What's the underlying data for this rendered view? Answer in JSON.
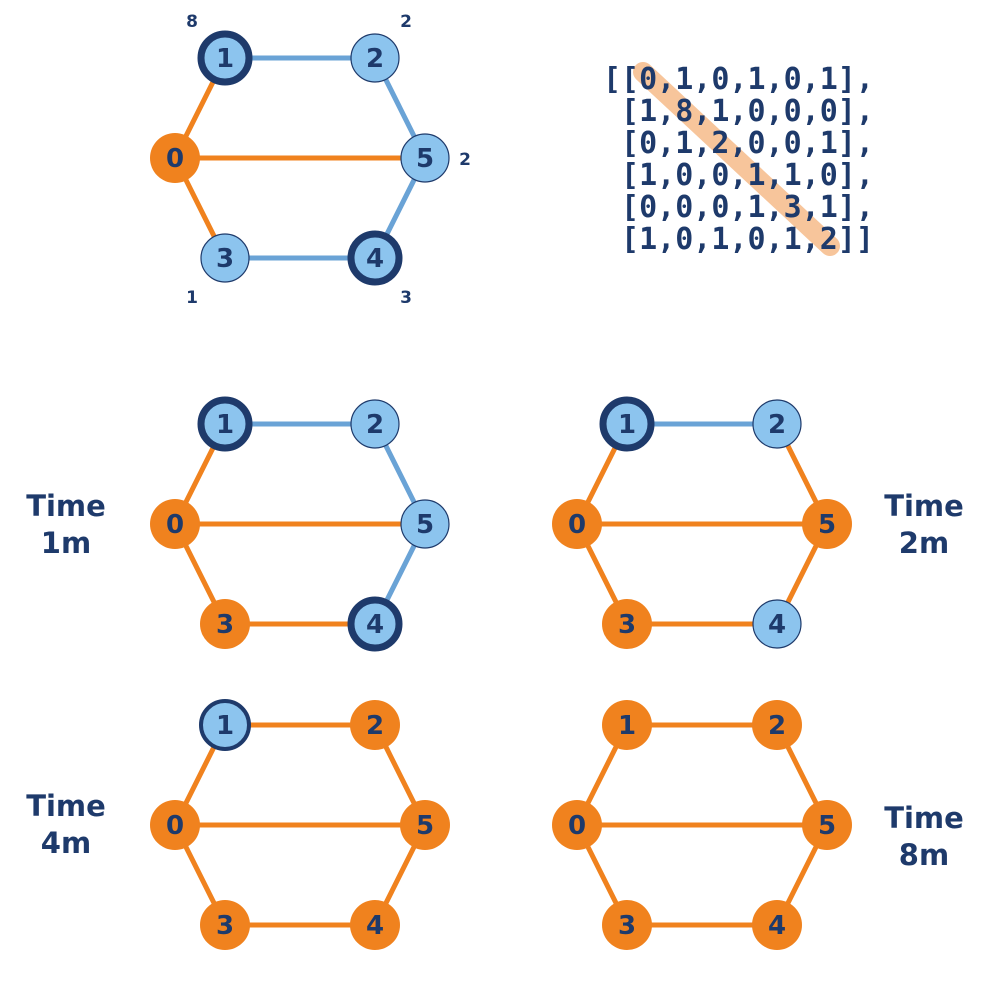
{
  "colors": {
    "orange": "#f0821e",
    "light_blue": "#8cc4ee",
    "edge_blue": "#6aa3d6",
    "dark_navy": "#1e3a6b",
    "diagonal_highlight": "#f7c59b"
  },
  "nodes": [
    "0",
    "1",
    "2",
    "3",
    "4",
    "5"
  ],
  "edges": [
    [
      "0",
      "1"
    ],
    [
      "1",
      "2"
    ],
    [
      "2",
      "5"
    ],
    [
      "0",
      "5"
    ],
    [
      "0",
      "3"
    ],
    [
      "3",
      "4"
    ],
    [
      "4",
      "5"
    ]
  ],
  "weights": {
    "1": "8",
    "2": "2",
    "5": "2",
    "3": "1",
    "4": "3"
  },
  "matrix": {
    "lines": [
      "[[0,1,0,1,0,1],",
      " [1,8,1,0,0,0],",
      " [0,1,2,0,0,1],",
      " [1,0,0,1,1,0],",
      " [0,0,0,1,3,1],",
      " [1,0,1,0,1,2]]"
    ]
  },
  "panels": [
    {
      "id": "initial",
      "node_states": {
        "0": "orange",
        "1": "dark",
        "2": "light",
        "3": "light",
        "4": "dark",
        "5": "light"
      },
      "edge_states": {
        "0-1": "orange",
        "1-2": "blue",
        "2-5": "blue",
        "0-5": "orange",
        "0-3": "orange",
        "3-4": "blue",
        "4-5": "blue"
      }
    },
    {
      "id": "t1",
      "time_line1": "Time",
      "time_line2": "1m",
      "node_states": {
        "0": "orange",
        "1": "dark",
        "2": "light",
        "3": "orange",
        "4": "dark",
        "5": "light"
      },
      "edge_states": {
        "0-1": "orange",
        "1-2": "blue",
        "2-5": "blue",
        "0-5": "orange",
        "0-3": "orange",
        "3-4": "orange",
        "4-5": "blue"
      }
    },
    {
      "id": "t2",
      "time_line1": "Time",
      "time_line2": "2m",
      "node_states": {
        "0": "orange",
        "1": "dark",
        "2": "light",
        "3": "orange",
        "4": "light",
        "5": "orange"
      },
      "edge_states": {
        "0-1": "orange",
        "1-2": "blue",
        "2-5": "orange",
        "0-5": "orange",
        "0-3": "orange",
        "3-4": "orange",
        "4-5": "orange"
      }
    },
    {
      "id": "t4",
      "time_line1": "Time",
      "time_line2": "4m",
      "node_states": {
        "0": "orange",
        "1": "dark-light",
        "2": "orange",
        "3": "orange",
        "4": "orange",
        "5": "orange"
      },
      "edge_states": {
        "0-1": "orange",
        "1-2": "orange",
        "2-5": "orange",
        "0-5": "orange",
        "0-3": "orange",
        "3-4": "orange",
        "4-5": "orange"
      }
    },
    {
      "id": "t8",
      "time_line1": "Time",
      "time_line2": "8m",
      "node_states": {
        "0": "orange",
        "1": "orange",
        "2": "orange",
        "3": "orange",
        "4": "orange",
        "5": "orange"
      },
      "edge_states": {
        "0-1": "orange",
        "1-2": "orange",
        "2-5": "orange",
        "0-5": "orange",
        "0-3": "orange",
        "3-4": "orange",
        "4-5": "orange"
      }
    }
  ]
}
